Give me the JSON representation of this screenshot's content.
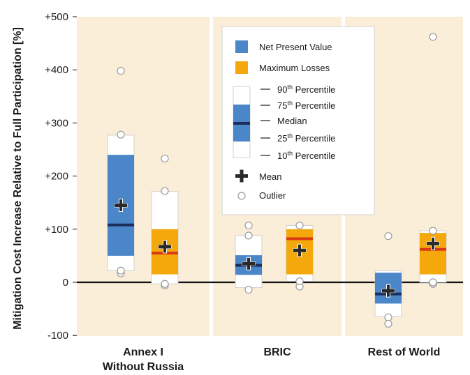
{
  "chart_data": {
    "type": "box",
    "ylabel": "Mitigation Cost Increase Relative to Full Participation [%]",
    "ylim": [
      -100,
      500
    ],
    "yticks": [
      {
        "value": 500,
        "label": "+500"
      },
      {
        "value": 400,
        "label": "+400"
      },
      {
        "value": 300,
        "label": "+300"
      },
      {
        "value": 200,
        "label": "+200"
      },
      {
        "value": 100,
        "label": "+100"
      },
      {
        "value": 0,
        "label": "0"
      },
      {
        "value": -100,
        "label": "-100"
      }
    ],
    "categories": [
      {
        "line1": "Annex I",
        "line2": "Without Russia"
      },
      {
        "line1": "BRIC",
        "line2": ""
      },
      {
        "line1": "Rest of World",
        "line2": ""
      }
    ],
    "series": [
      {
        "name": "Net Present Value",
        "color": "#4a86c8",
        "median_color": "#1c2e5c",
        "boxes": [
          {
            "p10": 22,
            "p25": 50,
            "median": 108,
            "p75": 240,
            "p90": 277,
            "mean": 145,
            "outliers": [
              17,
              22,
              278,
              398
            ]
          },
          {
            "p10": -10,
            "p25": 14,
            "median": 32,
            "p75": 51,
            "p90": 88,
            "mean": 35,
            "outliers": [
              -14,
              88,
              107
            ]
          },
          {
            "p10": -65,
            "p25": -40,
            "median": -22,
            "p75": 18,
            "p90": 22,
            "mean": -16,
            "outliers": [
              -66,
              -78,
              87
            ]
          }
        ]
      },
      {
        "name": "Maximum Losses",
        "color": "#f4a80c",
        "median_color": "#d83a14",
        "boxes": [
          {
            "p10": -3,
            "p25": 15,
            "median": 55,
            "p75": 100,
            "p90": 171,
            "mean": 67,
            "outliers": [
              -6,
              -3,
              172,
              233
            ]
          },
          {
            "p10": 2,
            "p25": 15,
            "median": 82,
            "p75": 100,
            "p90": 107,
            "mean": 60,
            "outliers": [
              -8,
              2,
              107
            ]
          },
          {
            "p10": 0,
            "p25": 15,
            "median": 62,
            "p75": 93,
            "p90": 97,
            "mean": 73,
            "outliers": [
              -3,
              0,
              97,
              462
            ]
          }
        ]
      }
    ],
    "legend": {
      "series": [
        "Net Present Value",
        "Maximum Losses"
      ],
      "percentiles": [
        {
          "base": "90",
          "sup": "th",
          "text": " Percentile"
        },
        {
          "base": "75",
          "sup": "th",
          "text": " Percentile"
        },
        {
          "base": "",
          "sup": "",
          "text": "Median"
        },
        {
          "base": "25",
          "sup": "th",
          "text": " Percentile"
        },
        {
          "base": "10",
          "sup": "th",
          "text": " Percentile"
        }
      ],
      "mean_label": "Mean",
      "outlier_label": "Outlier"
    },
    "colors": {
      "panel_bg": "#fbeed9",
      "box_outline": "#d0d0d0",
      "zero_line": "#111111"
    }
  }
}
